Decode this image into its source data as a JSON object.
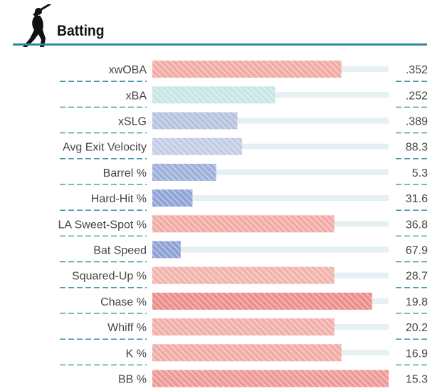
{
  "header": {
    "title": "Batting",
    "icon": "batter-icon",
    "accent": "#2b8a99"
  },
  "chart_data": {
    "type": "bar",
    "orientation": "horizontal",
    "scale": "percentile",
    "xlim": [
      0,
      100
    ],
    "categories": [
      "xwOBA",
      "xBA",
      "xSLG",
      "Avg Exit Velocity",
      "Barrel %",
      "Hard-Hit %",
      "LA Sweet-Spot %",
      "Bat Speed",
      "Squared-Up %",
      "Chase %",
      "Whiff %",
      "K %",
      "BB %"
    ],
    "values": [
      80,
      52,
      36,
      38,
      27,
      17,
      77,
      12,
      77,
      93,
      77,
      80,
      100
    ],
    "value_labels": [
      ".352",
      ".252",
      ".389",
      "88.3",
      "5.3",
      "31.6",
      "36.8",
      "67.9",
      "28.7",
      "19.8",
      "20.2",
      "16.9",
      "15.3"
    ],
    "colors": [
      "#f2aca6",
      "#c8e6e6",
      "#b7c3e0",
      "#c4cde6",
      "#9eb0db",
      "#90a4d6",
      "#f2aca6",
      "#8fa2d5",
      "#f2b5ae",
      "#ed8f8c",
      "#f2b0aa",
      "#f2aca6",
      "#ee9a97"
    ],
    "track_color": "#e6f0f3",
    "divider_color": "#2b8a99",
    "grid": false,
    "legend": "none"
  }
}
